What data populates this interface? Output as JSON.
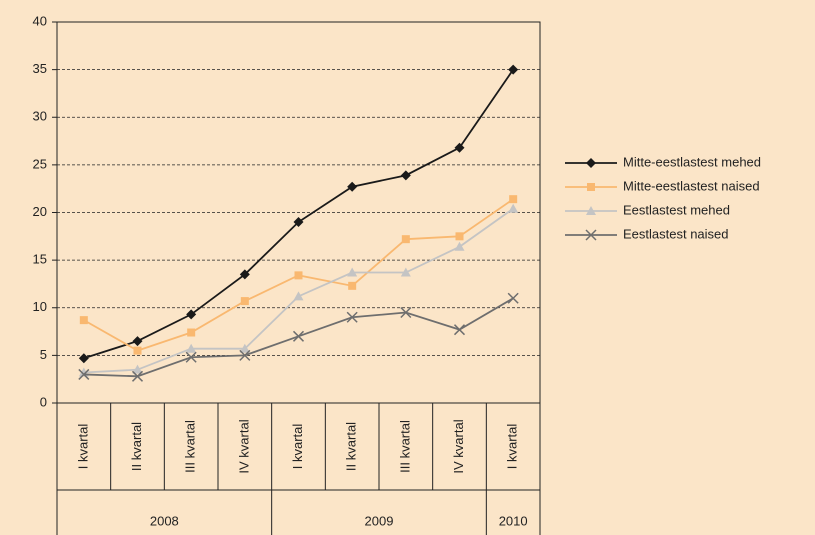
{
  "chart_data": {
    "type": "line",
    "categories": [
      "I kvartal",
      "II kvartal",
      "III kvartal",
      "IV kvartal",
      "I kvartal",
      "II kvartal",
      "III kvartal",
      "IV kvartal",
      "I kvartal"
    ],
    "category_groups": [
      "2008",
      null,
      null,
      null,
      "2009",
      null,
      null,
      null,
      "2010"
    ],
    "series": [
      {
        "name": "Mitte-eestlastest mehed",
        "color": "#1a1a1a",
        "marker": "diamond",
        "values": [
          4.7,
          6.5,
          9.3,
          13.5,
          19,
          22.7,
          23.9,
          26.8,
          35
        ]
      },
      {
        "name": "Mitte-eestlastest naised",
        "color": "#f9b870",
        "marker": "square",
        "values": [
          8.7,
          5.5,
          7.4,
          10.7,
          13.4,
          12.3,
          17.2,
          17.5,
          21.4
        ]
      },
      {
        "name": "Eestlastest mehed",
        "color": "#c4c4c4",
        "marker": "triangle",
        "values": [
          3.2,
          3.5,
          5.7,
          5.7,
          11.2,
          13.7,
          13.7,
          16.4,
          20.4
        ]
      },
      {
        "name": "Eestlastest naised",
        "color": "#6e6e6e",
        "marker": "x",
        "values": [
          3.0,
          2.8,
          4.8,
          5.0,
          7.0,
          9.0,
          9.5,
          7.7,
          11.0
        ]
      }
    ],
    "ylim": [
      0,
      40
    ],
    "yticks": [
      0,
      5,
      10,
      15,
      20,
      25,
      30,
      35,
      40
    ],
    "grid": true,
    "legend": "right"
  }
}
